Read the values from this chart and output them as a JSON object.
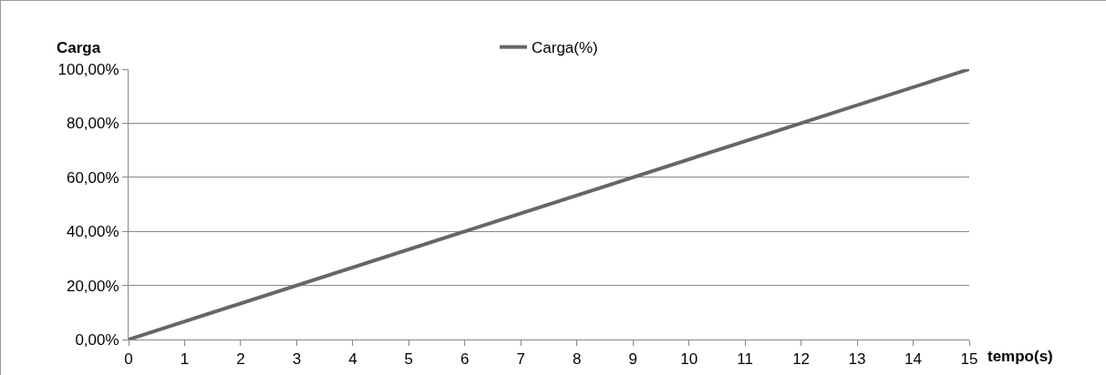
{
  "chart_data": {
    "type": "line",
    "xlabel": "tempo(s)",
    "ylabel": "Carga",
    "x": [
      0,
      15
    ],
    "series": [
      {
        "name": "Carga(%)",
        "color": "#666666",
        "values": [
          0,
          100
        ]
      }
    ],
    "xlim": [
      0,
      15
    ],
    "xticks": [
      0,
      1,
      2,
      3,
      4,
      5,
      6,
      7,
      8,
      9,
      10,
      11,
      12,
      13,
      14,
      15
    ],
    "ylim": [
      0,
      100
    ],
    "yticks": [
      {
        "value": 0,
        "label": "0,00%"
      },
      {
        "value": 20,
        "label": "20,00%"
      },
      {
        "value": 40,
        "label": "40,00%"
      },
      {
        "value": 60,
        "label": "60,00%"
      },
      {
        "value": 80,
        "label": "80,00%"
      },
      {
        "value": 100,
        "label": "100,00%"
      }
    ],
    "grid": "y",
    "legend": "top",
    "marker": "none",
    "line_style": "solid"
  }
}
